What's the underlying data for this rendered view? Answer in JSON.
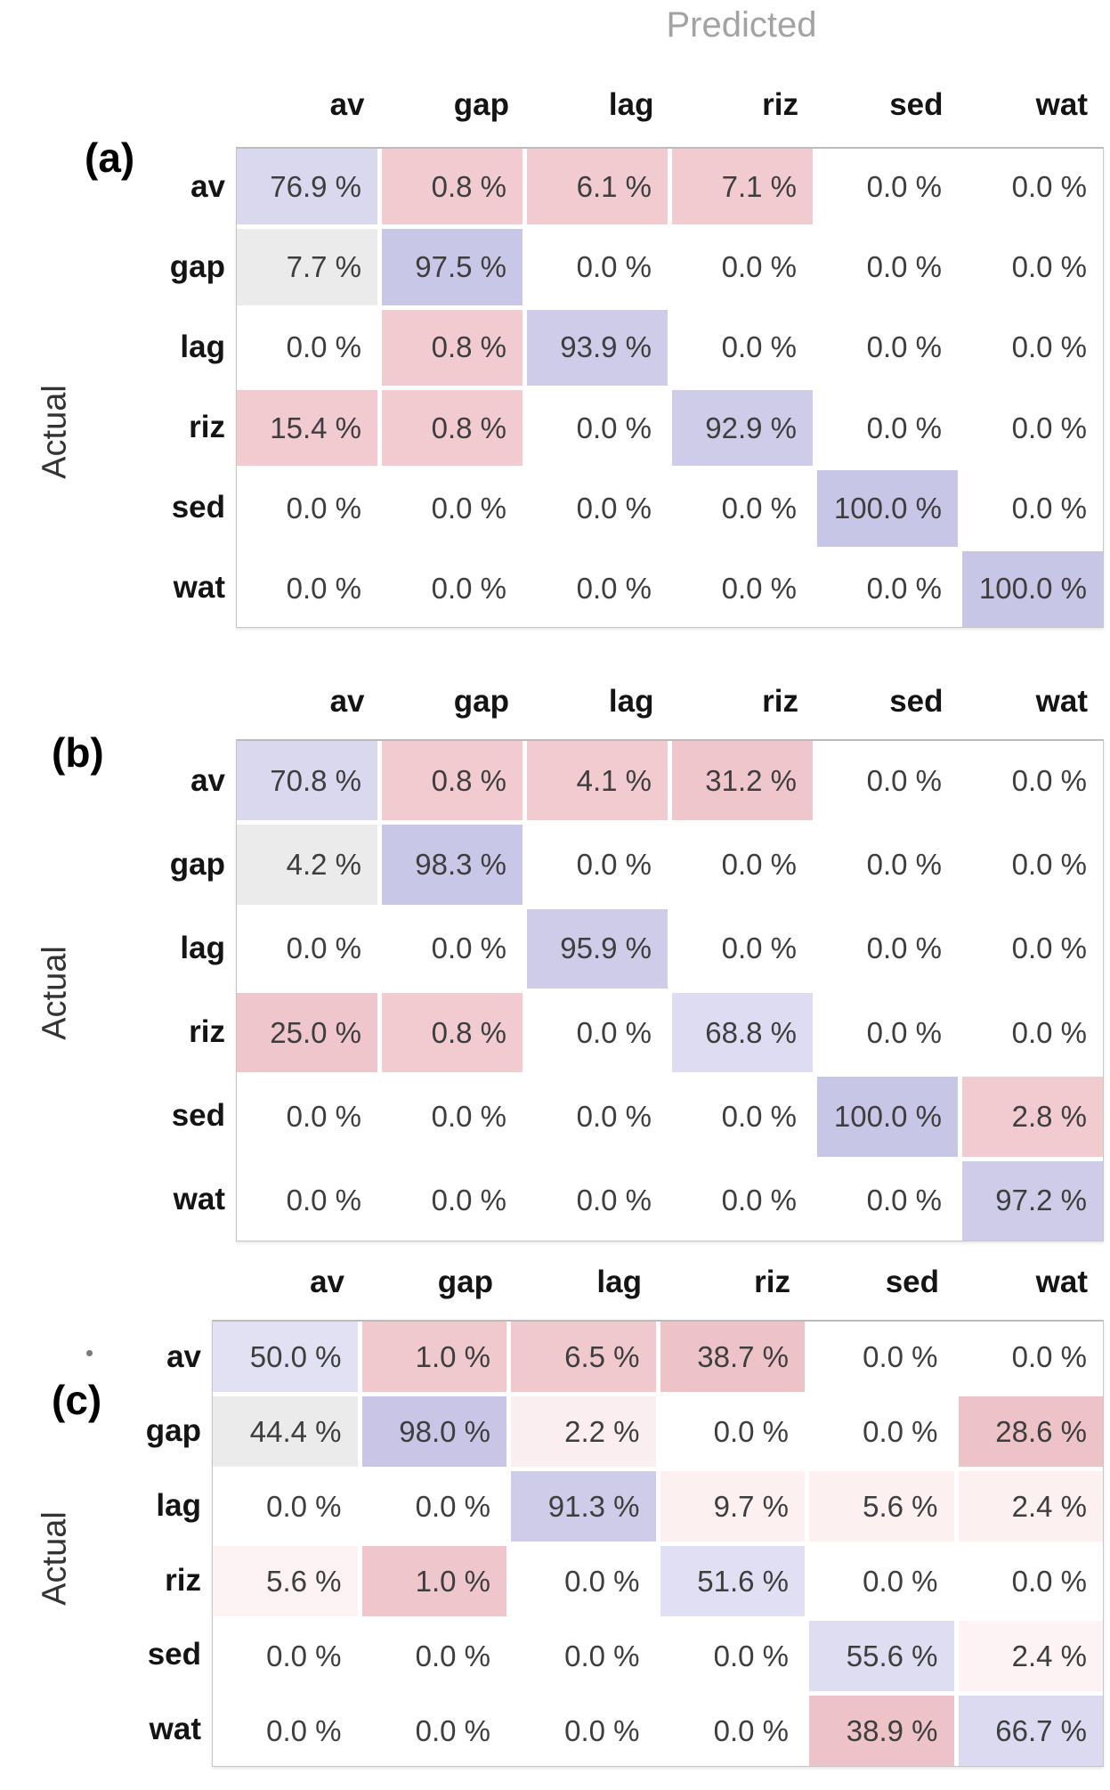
{
  "axis": {
    "x_label": "Predicted",
    "y_label": "Actual"
  },
  "classes": [
    "av",
    "gap",
    "lag",
    "riz",
    "sed",
    "wat"
  ],
  "palette": {
    "diag_strong_purple": "#c8c6e6",
    "diag_mid_purple": "#cecce9",
    "diag_light_purple": "#dad8ef",
    "diag_faint_purple": "#e1dff3",
    "offdiag_pink": "#f1cbcf",
    "offdiag_strong_pink": "#eec3c8",
    "offdiag_faint_pink": "#fbeef0",
    "neutral_gray": "#ebebeb",
    "empty_white": "#ffffff"
  },
  "matrices": [
    {
      "key": "a",
      "panel_label": "(a)",
      "rows": [
        {
          "label": "av",
          "cells": [
            {
              "text": "76.9 %",
              "bg": "#dad8ef"
            },
            {
              "text": "0.8 %",
              "bg": "#f1cbcf"
            },
            {
              "text": "6.1 %",
              "bg": "#f1cbcf"
            },
            {
              "text": "7.1 %",
              "bg": "#f1cbcf"
            },
            {
              "text": "0.0 %",
              "bg": "#ffffff"
            },
            {
              "text": "0.0 %",
              "bg": "#ffffff"
            }
          ]
        },
        {
          "label": "gap",
          "cells": [
            {
              "text": "7.7 %",
              "bg": "#ebebeb"
            },
            {
              "text": "97.5 %",
              "bg": "#c9c7e7"
            },
            {
              "text": "0.0 %",
              "bg": "#ffffff"
            },
            {
              "text": "0.0 %",
              "bg": "#ffffff"
            },
            {
              "text": "0.0 %",
              "bg": "#ffffff"
            },
            {
              "text": "0.0 %",
              "bg": "#ffffff"
            }
          ]
        },
        {
          "label": "lag",
          "cells": [
            {
              "text": "0.0 %",
              "bg": "#ffffff"
            },
            {
              "text": "0.8 %",
              "bg": "#f1cbcf"
            },
            {
              "text": "93.9 %",
              "bg": "#cecce9"
            },
            {
              "text": "0.0 %",
              "bg": "#ffffff"
            },
            {
              "text": "0.0 %",
              "bg": "#ffffff"
            },
            {
              "text": "0.0 %",
              "bg": "#ffffff"
            }
          ]
        },
        {
          "label": "riz",
          "cells": [
            {
              "text": "15.4 %",
              "bg": "#f1cbcf"
            },
            {
              "text": "0.8 %",
              "bg": "#f1cbcf"
            },
            {
              "text": "0.0 %",
              "bg": "#ffffff"
            },
            {
              "text": "92.9 %",
              "bg": "#cecce9"
            },
            {
              "text": "0.0 %",
              "bg": "#ffffff"
            },
            {
              "text": "0.0 %",
              "bg": "#ffffff"
            }
          ]
        },
        {
          "label": "sed",
          "cells": [
            {
              "text": "0.0 %",
              "bg": "#ffffff"
            },
            {
              "text": "0.0 %",
              "bg": "#ffffff"
            },
            {
              "text": "0.0 %",
              "bg": "#ffffff"
            },
            {
              "text": "0.0 %",
              "bg": "#ffffff"
            },
            {
              "text": "100.0 %",
              "bg": "#c8c6e6"
            },
            {
              "text": "0.0 %",
              "bg": "#ffffff"
            }
          ]
        },
        {
          "label": "wat",
          "cells": [
            {
              "text": "0.0 %",
              "bg": "#ffffff"
            },
            {
              "text": "0.0 %",
              "bg": "#ffffff"
            },
            {
              "text": "0.0 %",
              "bg": "#ffffff"
            },
            {
              "text": "0.0 %",
              "bg": "#ffffff"
            },
            {
              "text": "0.0 %",
              "bg": "#ffffff"
            },
            {
              "text": "100.0 %",
              "bg": "#c8c6e6"
            }
          ]
        }
      ]
    },
    {
      "key": "b",
      "panel_label": "(b)",
      "rows": [
        {
          "label": "av",
          "cells": [
            {
              "text": "70.8 %",
              "bg": "#dad8ef"
            },
            {
              "text": "0.8 %",
              "bg": "#f1cbcf"
            },
            {
              "text": "4.1 %",
              "bg": "#f1cbcf"
            },
            {
              "text": "31.2 %",
              "bg": "#efc6cb"
            },
            {
              "text": "0.0 %",
              "bg": "#ffffff"
            },
            {
              "text": "0.0 %",
              "bg": "#ffffff"
            }
          ]
        },
        {
          "label": "gap",
          "cells": [
            {
              "text": "4.2 %",
              "bg": "#ebebeb"
            },
            {
              "text": "98.3 %",
              "bg": "#c9c7e7"
            },
            {
              "text": "0.0 %",
              "bg": "#ffffff"
            },
            {
              "text": "0.0 %",
              "bg": "#ffffff"
            },
            {
              "text": "0.0 %",
              "bg": "#ffffff"
            },
            {
              "text": "0.0 %",
              "bg": "#ffffff"
            }
          ]
        },
        {
          "label": "lag",
          "cells": [
            {
              "text": "0.0 %",
              "bg": "#ffffff"
            },
            {
              "text": "0.0 %",
              "bg": "#ffffff"
            },
            {
              "text": "95.9 %",
              "bg": "#cecce9"
            },
            {
              "text": "0.0 %",
              "bg": "#ffffff"
            },
            {
              "text": "0.0 %",
              "bg": "#ffffff"
            },
            {
              "text": "0.0 %",
              "bg": "#ffffff"
            }
          ]
        },
        {
          "label": "riz",
          "cells": [
            {
              "text": "25.0 %",
              "bg": "#efc6cb"
            },
            {
              "text": "0.8 %",
              "bg": "#f1cbcf"
            },
            {
              "text": "0.0 %",
              "bg": "#ffffff"
            },
            {
              "text": "68.8 %",
              "bg": "#dedcf2"
            },
            {
              "text": "0.0 %",
              "bg": "#ffffff"
            },
            {
              "text": "0.0 %",
              "bg": "#ffffff"
            }
          ]
        },
        {
          "label": "sed",
          "cells": [
            {
              "text": "0.0 %",
              "bg": "#ffffff"
            },
            {
              "text": "0.0 %",
              "bg": "#ffffff"
            },
            {
              "text": "0.0 %",
              "bg": "#ffffff"
            },
            {
              "text": "0.0 %",
              "bg": "#ffffff"
            },
            {
              "text": "100.0 %",
              "bg": "#c8c6e6"
            },
            {
              "text": "2.8 %",
              "bg": "#f1cbcf"
            }
          ]
        },
        {
          "label": "wat",
          "cells": [
            {
              "text": "0.0 %",
              "bg": "#ffffff"
            },
            {
              "text": "0.0 %",
              "bg": "#ffffff"
            },
            {
              "text": "0.0 %",
              "bg": "#ffffff"
            },
            {
              "text": "0.0 %",
              "bg": "#ffffff"
            },
            {
              "text": "0.0 %",
              "bg": "#ffffff"
            },
            {
              "text": "97.2 %",
              "bg": "#cecce9"
            }
          ]
        }
      ]
    },
    {
      "key": "c",
      "panel_label": "(c)",
      "rows": [
        {
          "label": "av",
          "cells": [
            {
              "text": "50.0 %",
              "bg": "#e2e0f3"
            },
            {
              "text": "1.0 %",
              "bg": "#f0c9cd"
            },
            {
              "text": "6.5 %",
              "bg": "#f0c9cd"
            },
            {
              "text": "38.7 %",
              "bg": "#eec3c8"
            },
            {
              "text": "0.0 %",
              "bg": "#ffffff"
            },
            {
              "text": "0.0 %",
              "bg": "#ffffff"
            }
          ]
        },
        {
          "label": "gap",
          "cells": [
            {
              "text": "44.4 %",
              "bg": "#ebebeb"
            },
            {
              "text": "98.0 %",
              "bg": "#c8c5e6"
            },
            {
              "text": "2.2 %",
              "bg": "#fbeef0"
            },
            {
              "text": "0.0 %",
              "bg": "#ffffff"
            },
            {
              "text": "0.0 %",
              "bg": "#ffffff"
            },
            {
              "text": "28.6 %",
              "bg": "#eec3c8"
            }
          ]
        },
        {
          "label": "lag",
          "cells": [
            {
              "text": "0.0 %",
              "bg": "#ffffff"
            },
            {
              "text": "0.0 %",
              "bg": "#ffffff"
            },
            {
              "text": "91.3 %",
              "bg": "#cecce9"
            },
            {
              "text": "9.7 %",
              "bg": "#fcf0f1"
            },
            {
              "text": "5.6 %",
              "bg": "#fcf0f1"
            },
            {
              "text": "2.4 %",
              "bg": "#fcf0f1"
            }
          ]
        },
        {
          "label": "riz",
          "cells": [
            {
              "text": "5.6 %",
              "bg": "#fdf3f4"
            },
            {
              "text": "1.0 %",
              "bg": "#efc6cb"
            },
            {
              "text": "0.0 %",
              "bg": "#ffffff"
            },
            {
              "text": "51.6 %",
              "bg": "#e1dff3"
            },
            {
              "text": "0.0 %",
              "bg": "#ffffff"
            },
            {
              "text": "0.0 %",
              "bg": "#ffffff"
            }
          ]
        },
        {
          "label": "sed",
          "cells": [
            {
              "text": "0.0 %",
              "bg": "#ffffff"
            },
            {
              "text": "0.0 %",
              "bg": "#ffffff"
            },
            {
              "text": "0.0 %",
              "bg": "#ffffff"
            },
            {
              "text": "0.0 %",
              "bg": "#ffffff"
            },
            {
              "text": "55.6 %",
              "bg": "#dfddf2"
            },
            {
              "text": "2.4 %",
              "bg": "#fdf3f4"
            }
          ]
        },
        {
          "label": "wat",
          "cells": [
            {
              "text": "0.0 %",
              "bg": "#ffffff"
            },
            {
              "text": "0.0 %",
              "bg": "#ffffff"
            },
            {
              "text": "0.0 %",
              "bg": "#ffffff"
            },
            {
              "text": "0.0 %",
              "bg": "#ffffff"
            },
            {
              "text": "38.9 %",
              "bg": "#eec3c8"
            },
            {
              "text": "66.7 %",
              "bg": "#dcdaf0"
            }
          ]
        }
      ]
    }
  ],
  "chart_data": [
    {
      "type": "heatmap",
      "title": "(a) confusion matrix",
      "xlabel": "Predicted",
      "ylabel": "Actual",
      "columns": [
        "av",
        "gap",
        "lag",
        "riz",
        "sed",
        "wat"
      ],
      "rows": [
        "av",
        "gap",
        "lag",
        "riz",
        "sed",
        "wat"
      ],
      "unit": "%",
      "values": [
        [
          76.9,
          0.8,
          6.1,
          7.1,
          0.0,
          0.0
        ],
        [
          7.7,
          97.5,
          0.0,
          0.0,
          0.0,
          0.0
        ],
        [
          0.0,
          0.8,
          93.9,
          0.0,
          0.0,
          0.0
        ],
        [
          15.4,
          0.8,
          0.0,
          92.9,
          0.0,
          0.0
        ],
        [
          0.0,
          0.0,
          0.0,
          0.0,
          100.0,
          0.0
        ],
        [
          0.0,
          0.0,
          0.0,
          0.0,
          0.0,
          100.0
        ]
      ],
      "legend_position": "none",
      "grid": false,
      "color_coding": "purple = diagonal (correct), pink = off-diagonal (confusion)"
    },
    {
      "type": "heatmap",
      "title": "(b) confusion matrix",
      "xlabel": "Predicted",
      "ylabel": "Actual",
      "columns": [
        "av",
        "gap",
        "lag",
        "riz",
        "sed",
        "wat"
      ],
      "rows": [
        "av",
        "gap",
        "lag",
        "riz",
        "sed",
        "wat"
      ],
      "unit": "%",
      "values": [
        [
          70.8,
          0.8,
          4.1,
          31.2,
          0.0,
          0.0
        ],
        [
          4.2,
          98.3,
          0.0,
          0.0,
          0.0,
          0.0
        ],
        [
          0.0,
          0.0,
          95.9,
          0.0,
          0.0,
          0.0
        ],
        [
          25.0,
          0.8,
          0.0,
          68.8,
          0.0,
          0.0
        ],
        [
          0.0,
          0.0,
          0.0,
          0.0,
          100.0,
          2.8
        ],
        [
          0.0,
          0.0,
          0.0,
          0.0,
          0.0,
          97.2
        ]
      ],
      "legend_position": "none",
      "grid": false,
      "color_coding": "purple = diagonal (correct), pink = off-diagonal (confusion)"
    },
    {
      "type": "heatmap",
      "title": "(c) confusion matrix",
      "xlabel": "Predicted",
      "ylabel": "Actual",
      "columns": [
        "av",
        "gap",
        "lag",
        "riz",
        "sed",
        "wat"
      ],
      "rows": [
        "av",
        "gap",
        "lag",
        "riz",
        "sed",
        "wat"
      ],
      "unit": "%",
      "values": [
        [
          50.0,
          1.0,
          6.5,
          38.7,
          0.0,
          0.0
        ],
        [
          44.4,
          98.0,
          2.2,
          0.0,
          0.0,
          28.6
        ],
        [
          0.0,
          0.0,
          91.3,
          9.7,
          5.6,
          2.4
        ],
        [
          5.6,
          1.0,
          0.0,
          51.6,
          0.0,
          0.0
        ],
        [
          0.0,
          0.0,
          0.0,
          0.0,
          55.6,
          2.4
        ],
        [
          0.0,
          0.0,
          0.0,
          0.0,
          38.9,
          66.7
        ]
      ],
      "legend_position": "none",
      "grid": false,
      "color_coding": "purple = diagonal (correct), pink = off-diagonal (confusion)"
    }
  ]
}
